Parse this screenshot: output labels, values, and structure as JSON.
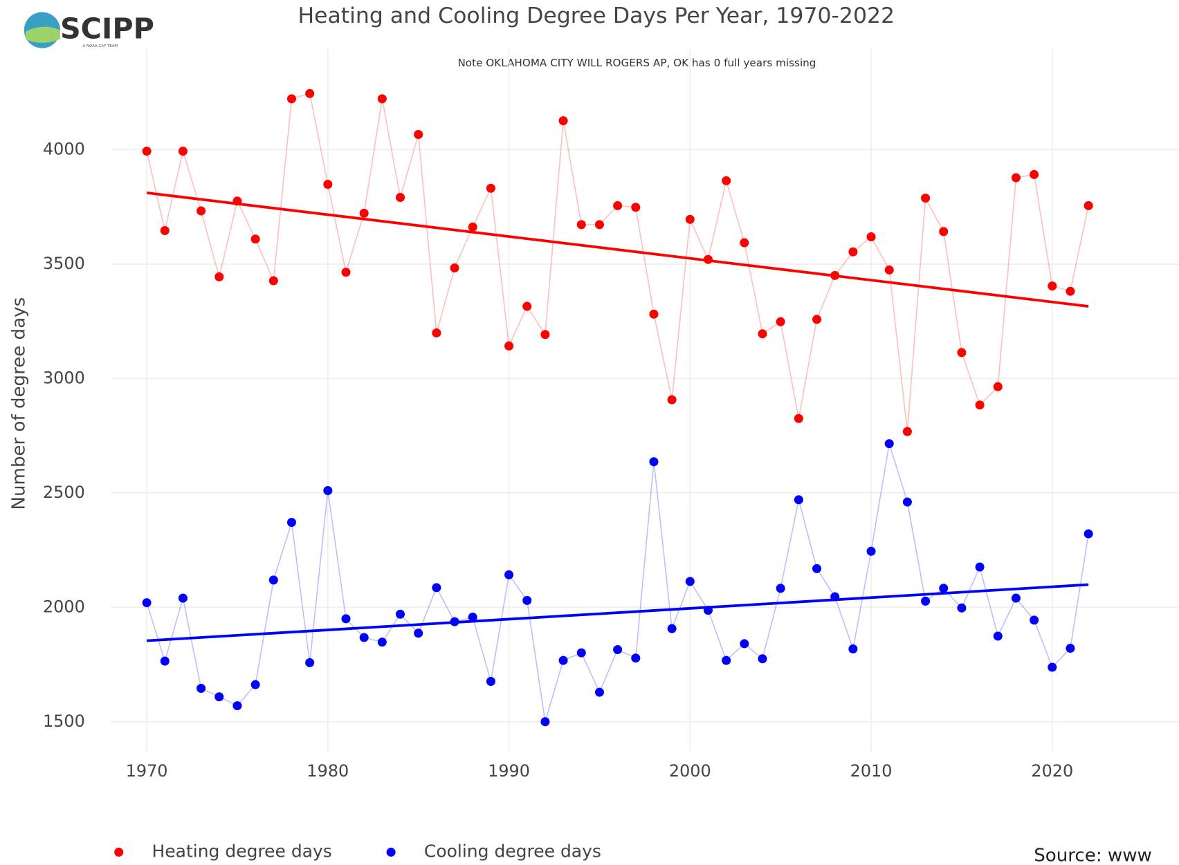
{
  "logo": {
    "name": "SCIPP",
    "tagline": "A NOAA CAP TEAM"
  },
  "chart_data": {
    "type": "line",
    "title": "Heating and Cooling Degree Days Per Year, 1970-2022",
    "subtitle": "Note OKLAHOMA CITY WILL ROGERS AP, OK has 0 full years missing",
    "y_label": "Number of degree days",
    "source": "Source: www",
    "x": [
      1970,
      1971,
      1972,
      1973,
      1974,
      1975,
      1976,
      1977,
      1978,
      1979,
      1980,
      1981,
      1982,
      1983,
      1984,
      1985,
      1986,
      1987,
      1988,
      1989,
      1990,
      1991,
      1992,
      1993,
      1994,
      1995,
      1996,
      1997,
      1998,
      1999,
      2000,
      2001,
      2002,
      2003,
      2004,
      2005,
      2006,
      2007,
      2008,
      2009,
      2010,
      2011,
      2012,
      2013,
      2014,
      2015,
      2016,
      2017,
      2018,
      2019,
      2020,
      2021,
      2022
    ],
    "series": [
      {
        "name": "Heating degree days",
        "color": "#ff0000",
        "values": [
          3993,
          3646,
          3993,
          3732,
          3444,
          3775,
          3609,
          3427,
          4222,
          4245,
          3848,
          3464,
          3722,
          4222,
          3791,
          4066,
          3199,
          3483,
          3662,
          3831,
          3142,
          3315,
          3192,
          4126,
          3672,
          3672,
          3755,
          3748,
          3281,
          2907,
          3695,
          3520,
          3864,
          3593,
          3195,
          3248,
          2825,
          3258,
          3450,
          3553,
          3619,
          3474,
          2768,
          3788,
          3642,
          3113,
          2884,
          2964,
          3877,
          3891,
          3404,
          3381,
          3755
        ]
      },
      {
        "name": "Cooling degree days",
        "color": "#0000ff",
        "values": [
          2020,
          1765,
          2040,
          1646,
          1609,
          1570,
          1662,
          2119,
          2371,
          1758,
          2510,
          1950,
          1868,
          1848,
          1970,
          1887,
          2086,
          1937,
          1957,
          1676,
          2142,
          2030,
          1500,
          1768,
          1801,
          1629,
          1815,
          1778,
          2636,
          1907,
          2113,
          1987,
          1768,
          1841,
          1775,
          2083,
          2470,
          2169,
          2046,
          1818,
          2245,
          2715,
          2460,
          2027,
          2083,
          1997,
          2176,
          1874,
          2040,
          1944,
          1738,
          1821,
          2321
        ]
      }
    ],
    "trendlines": [
      {
        "color": "#ff0000",
        "x": [
          1970,
          2022
        ],
        "values": [
          3811,
          3315
        ]
      },
      {
        "color": "#0000ff",
        "x": [
          1970,
          2022
        ],
        "values": [
          1854,
          2099
        ]
      }
    ],
    "xlim": [
      1968,
      2027
    ],
    "ylim": [
      1370,
      4440
    ],
    "xticks": [
      1970,
      1980,
      1990,
      2000,
      2010,
      2020
    ],
    "yticks": [
      1500,
      2000,
      2500,
      3000,
      3500,
      4000
    ],
    "grid": true
  }
}
